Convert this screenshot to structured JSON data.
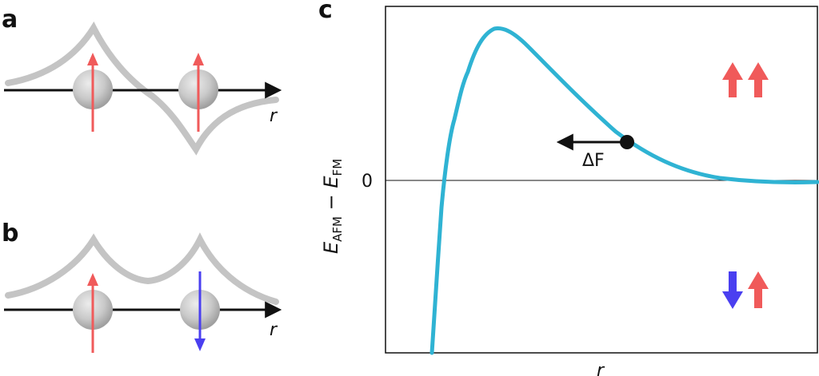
{
  "panels": {
    "a": {
      "letter": "a",
      "axis_label": "r"
    },
    "b": {
      "letter": "b",
      "axis_label": "r"
    },
    "c": {
      "letter": "c",
      "xlabel": "r",
      "ylabel_main": "E",
      "ylabel_sub1": "AFM",
      "ylabel_dash": " − ",
      "ylabel_main2": "E",
      "ylabel_sub2": "FM",
      "zero_tick": "0",
      "force_label": "ΔF"
    }
  },
  "colors": {
    "spin_up": "#f05a5a",
    "spin_down": "#4a3ff0",
    "curve": "#2fb3d3",
    "potential": "#c4c4c4",
    "axis": "#111111"
  },
  "icons": {
    "ferromagnetic": [
      "spin-up-arrow-icon",
      "spin-up-arrow-icon"
    ],
    "antiferromagnetic": [
      "spin-down-arrow-icon",
      "spin-up-arrow-icon"
    ]
  }
}
